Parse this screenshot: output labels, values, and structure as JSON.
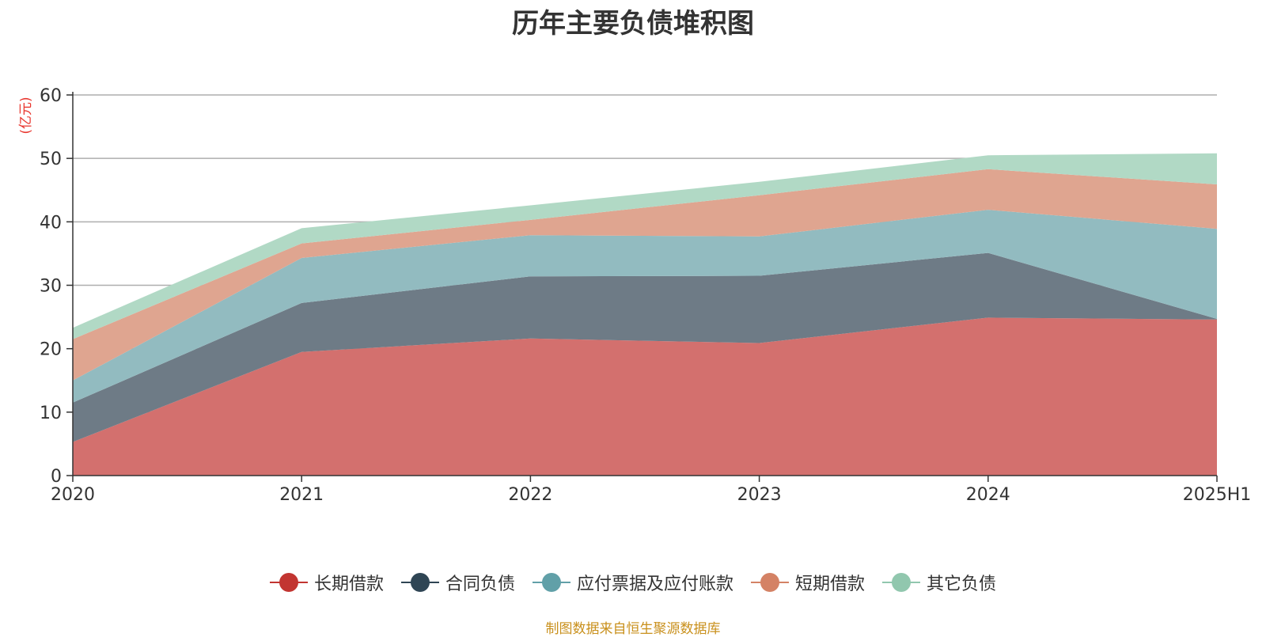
{
  "chart_data": {
    "type": "area",
    "stacked": true,
    "title": "历年主要负债堆积图",
    "ylabel": "(亿元)",
    "xlabel": "",
    "ylim": [
      0,
      60
    ],
    "yticks": [
      0,
      10,
      20,
      30,
      40,
      50,
      60
    ],
    "categories": [
      "2020",
      "2021",
      "2022",
      "2023",
      "2024",
      "2025H1"
    ],
    "series": [
      {
        "name": "长期借款",
        "values": [
          5.3,
          19.5,
          21.6,
          20.9,
          24.9,
          24.6
        ],
        "color": "#c23531",
        "fill": "#d3706e"
      },
      {
        "name": "合同负债",
        "values": [
          6.2,
          7.7,
          9.8,
          10.6,
          10.2,
          0.1
        ],
        "color": "#2f4554",
        "fill": "#6e7b86"
      },
      {
        "name": "应付票据及应付账款",
        "values": [
          3.5,
          7.1,
          6.5,
          6.2,
          6.8,
          14.2
        ],
        "color": "#61a0a8",
        "fill": "#92bbc0"
      },
      {
        "name": "短期借款",
        "values": [
          6.5,
          2.3,
          2.4,
          6.5,
          6.4,
          7.0
        ],
        "color": "#d48265",
        "fill": "#dfa590"
      },
      {
        "name": "其它负债",
        "values": [
          1.8,
          2.4,
          2.3,
          2.1,
          2.2,
          4.9
        ],
        "color": "#91c7ae",
        "fill": "#b1d9c5"
      }
    ],
    "legend_position": "bottom-center",
    "grid": true
  },
  "footer": {
    "source": "制图数据来自恒生聚源数据库"
  }
}
